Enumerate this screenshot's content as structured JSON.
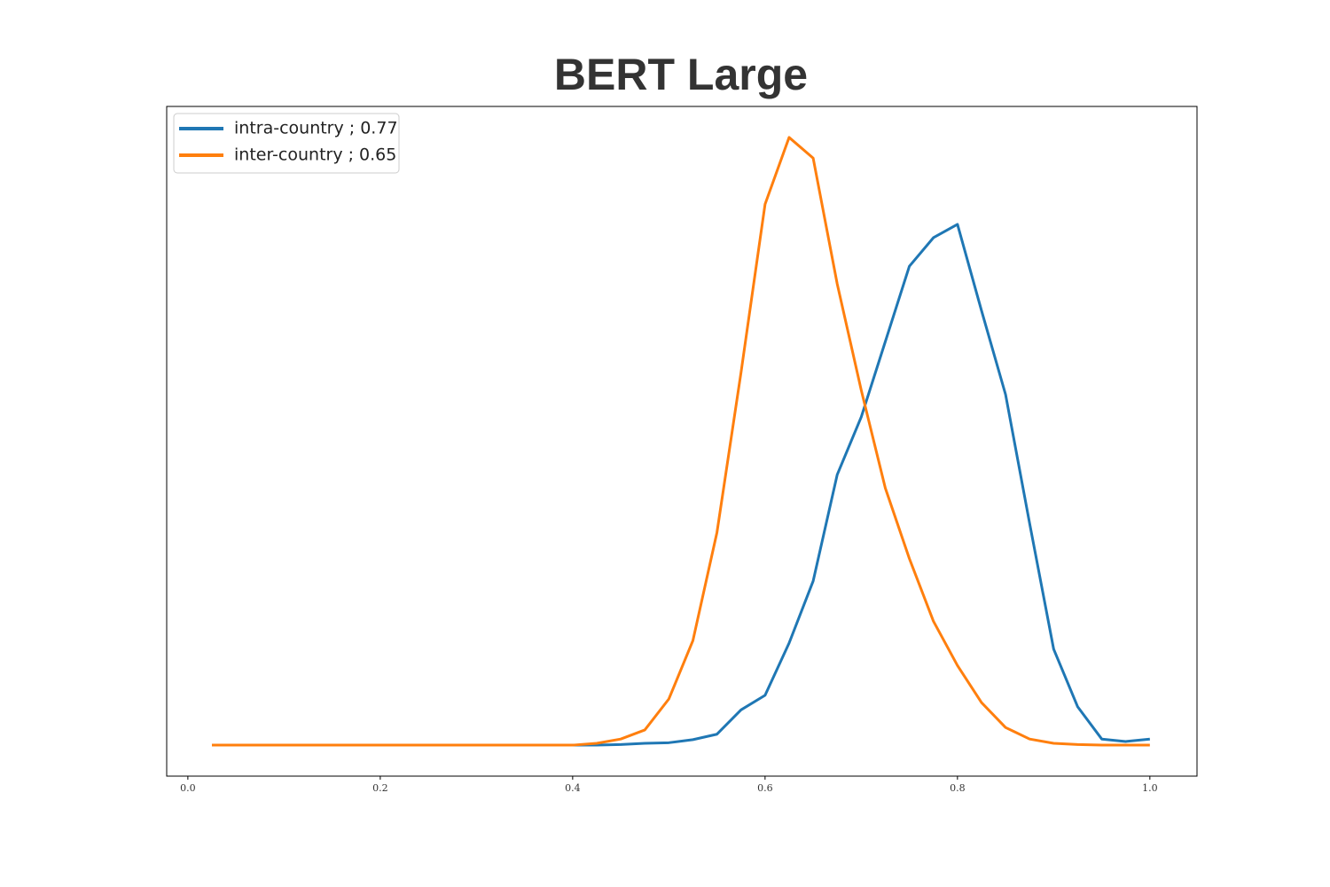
{
  "chart_data": {
    "type": "line",
    "title": "BERT Large",
    "x": [
      0.025,
      0.05,
      0.075,
      0.1,
      0.125,
      0.15,
      0.175,
      0.2,
      0.225,
      0.25,
      0.275,
      0.3,
      0.325,
      0.35,
      0.375,
      0.4,
      0.425,
      0.45,
      0.475,
      0.5,
      0.525,
      0.55,
      0.575,
      0.6,
      0.625,
      0.65,
      0.675,
      0.7,
      0.725,
      0.75,
      0.775,
      0.8,
      0.825,
      0.85,
      0.875,
      0.9,
      0.925,
      0.95,
      0.975,
      1.0
    ],
    "series": [
      {
        "name": "intra-country ; 0.77",
        "color": "#1f77b4",
        "values": [
          0,
          0,
          0,
          0,
          0,
          0,
          0,
          0,
          0,
          0,
          0,
          0,
          0,
          0,
          0,
          0,
          0,
          0.01,
          0.03,
          0.04,
          0.09,
          0.18,
          0.58,
          0.82,
          1.68,
          2.7,
          4.45,
          5.4,
          6.64,
          7.88,
          8.35,
          8.57,
          7.15,
          5.77,
          3.65,
          1.58,
          0.63,
          0.1,
          0.06,
          0.1
        ]
      },
      {
        "name": "inter-country ; 0.65",
        "color": "#ff7f0e",
        "values": [
          0,
          0,
          0,
          0,
          0,
          0,
          0,
          0,
          0,
          0,
          0,
          0,
          0,
          0,
          0,
          0,
          0.03,
          0.1,
          0.25,
          0.76,
          1.72,
          3.5,
          6.13,
          8.9,
          10,
          9.66,
          7.59,
          5.84,
          4.23,
          3.07,
          2.04,
          1.31,
          0.7,
          0.29,
          0.1,
          0.03,
          0.01,
          0,
          0,
          0
        ]
      }
    ],
    "xlim": [
      -0.022,
      1.049
    ],
    "xticks": [
      {
        "value": 0,
        "label": "0.0"
      },
      0.2,
      0.4,
      0.6,
      0.8,
      {
        "value": 1,
        "label": "1.0"
      }
    ],
    "ylim": [
      -0.51,
      10.51
    ],
    "legend": "upper left",
    "grid": false
  }
}
